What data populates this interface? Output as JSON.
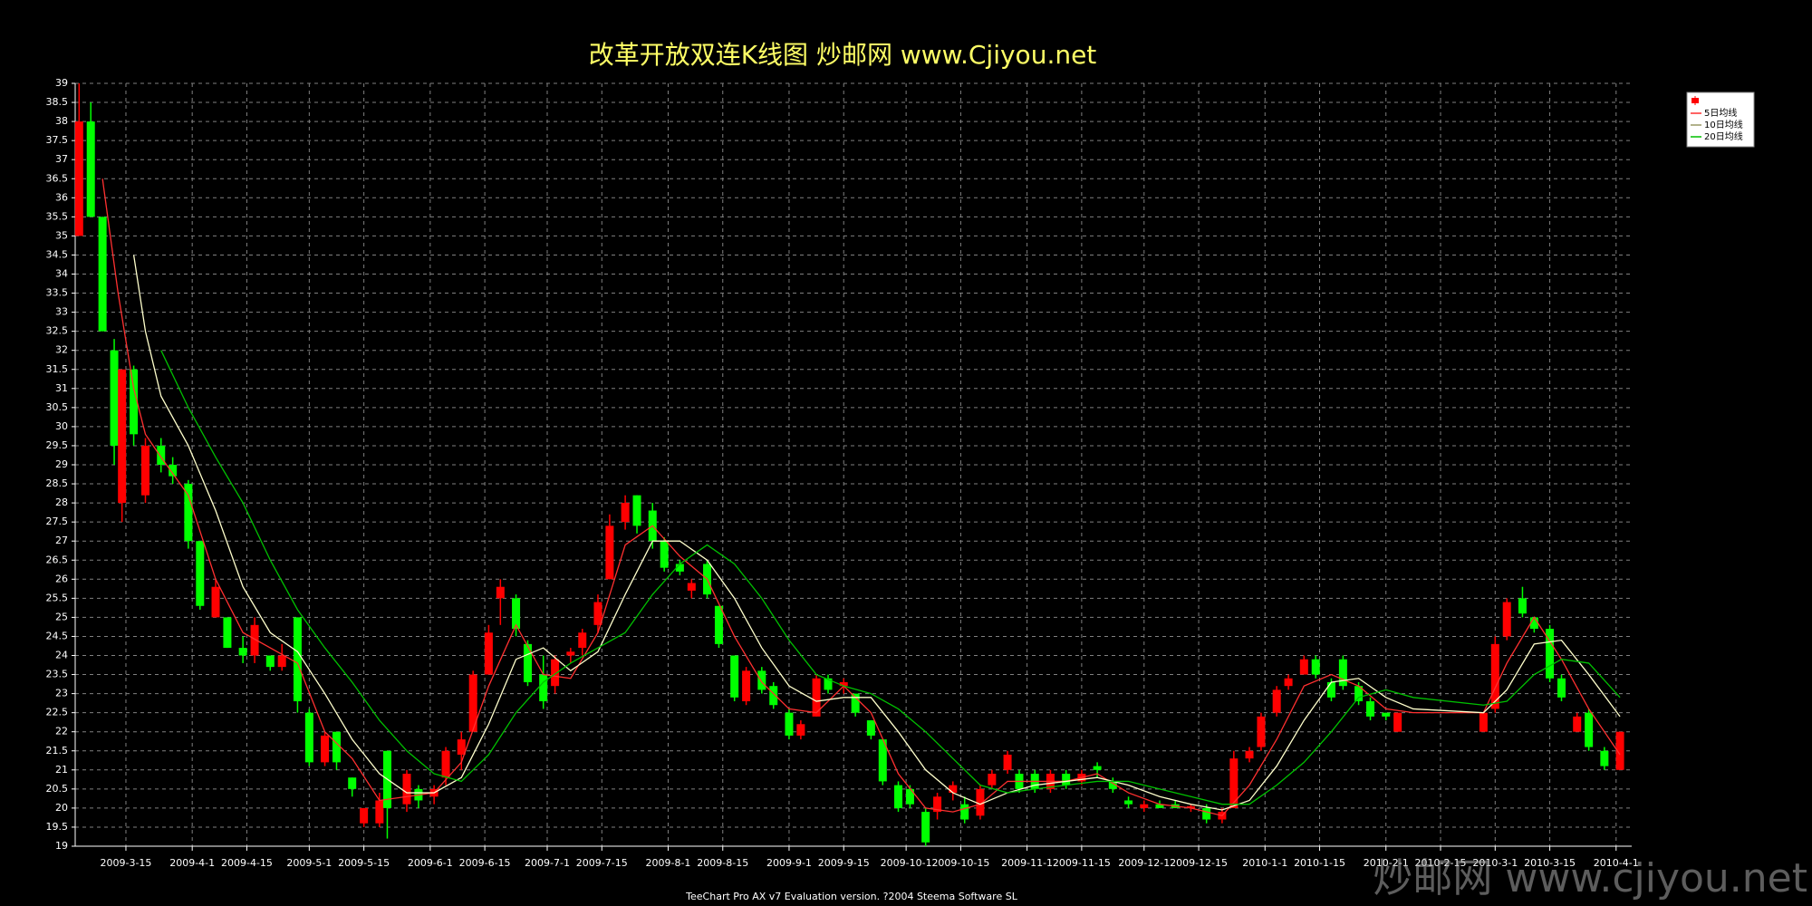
{
  "chart_data": {
    "type": "candlestick",
    "title": "改革开放双连K线图  炒邮网 www.Cjiyou.net",
    "footer": "TeeChart Pro AX v7 Evaluation version. ?2004 Steema Software SL",
    "watermark": "炒邮网 www.cjiyou.net",
    "up_color": "#ff0000",
    "down_color": "#00ff00",
    "grid": true,
    "legend": "top-right",
    "xlim": [
      "2009-3-2",
      "2010-4-5"
    ],
    "xticks": [
      "2009-3-15",
      "2009-4-1",
      "2009-4-15",
      "2009-5-1",
      "2009-5-15",
      "2009-6-1",
      "2009-6-15",
      "2009-7-1",
      "2009-7-15",
      "2009-8-1",
      "2009-8-15",
      "2009-9-1",
      "2009-9-15",
      "2009-10-1",
      "2009-10-15",
      "2009-11-1",
      "2009-11-15",
      "2009-12-1",
      "2009-12-15",
      "2010-1-1",
      "2010-1-15",
      "2010-2-1",
      "2010-2-15",
      "2010-3-1",
      "2010-3-15",
      "2010-4-1"
    ],
    "ylim": [
      19,
      39
    ],
    "yticks": [
      19,
      19.5,
      20,
      20.5,
      21,
      21.5,
      22,
      22.5,
      23,
      23.5,
      24,
      24.5,
      25,
      25.5,
      26,
      26.5,
      27,
      27.5,
      28,
      28.5,
      29,
      29.5,
      30,
      30.5,
      31,
      31.5,
      32,
      32.5,
      33,
      33.5,
      34,
      34.5,
      35,
      35.5,
      36,
      36.5,
      37,
      37.5,
      38,
      38.5,
      39
    ],
    "candles": [
      {
        "x": "2009-3-3",
        "open": 35,
        "high": 39,
        "low": 35,
        "close": 38
      },
      {
        "x": "2009-3-6",
        "open": 38,
        "high": 38.5,
        "low": 35.5,
        "close": 35.5
      },
      {
        "x": "2009-3-9",
        "open": 35.5,
        "high": 35.5,
        "low": 32.5,
        "close": 32.5
      },
      {
        "x": "2009-3-12",
        "open": 32,
        "high": 32.3,
        "low": 29,
        "close": 29.5
      },
      {
        "x": "2009-3-14",
        "open": 28,
        "high": 31.5,
        "low": 27.5,
        "close": 31.5
      },
      {
        "x": "2009-3-17",
        "open": 31.5,
        "high": 31.6,
        "low": 29.5,
        "close": 29.8
      },
      {
        "x": "2009-3-20",
        "open": 28.2,
        "high": 29.7,
        "low": 28,
        "close": 29.5
      },
      {
        "x": "2009-3-24",
        "open": 29.5,
        "high": 29.7,
        "low": 28.8,
        "close": 29
      },
      {
        "x": "2009-3-27",
        "open": 29,
        "high": 29.2,
        "low": 28.5,
        "close": 28.7
      },
      {
        "x": "2009-3-31",
        "open": 28.5,
        "high": 28.6,
        "low": 26.8,
        "close": 27
      },
      {
        "x": "2009-4-3",
        "open": 27,
        "high": 27,
        "low": 25.2,
        "close": 25.3
      },
      {
        "x": "2009-4-7",
        "open": 25,
        "high": 26,
        "low": 25,
        "close": 25.8
      },
      {
        "x": "2009-4-10",
        "open": 25,
        "high": 25,
        "low": 24.2,
        "close": 24.2
      },
      {
        "x": "2009-4-14",
        "open": 24.2,
        "high": 24.5,
        "low": 23.8,
        "close": 24
      },
      {
        "x": "2009-4-17",
        "open": 24,
        "high": 25,
        "low": 23.8,
        "close": 24.8
      },
      {
        "x": "2009-4-21",
        "open": 24,
        "high": 24,
        "low": 23.6,
        "close": 23.7
      },
      {
        "x": "2009-4-24",
        "open": 23.7,
        "high": 24.3,
        "low": 23.6,
        "close": 24
      },
      {
        "x": "2009-4-28",
        "open": 25,
        "high": 25,
        "low": 22.5,
        "close": 22.8
      },
      {
        "x": "2009-5-1",
        "open": 22.5,
        "high": 22.6,
        "low": 21.1,
        "close": 21.2
      },
      {
        "x": "2009-5-5",
        "open": 21.2,
        "high": 22,
        "low": 21.1,
        "close": 21.9
      },
      {
        "x": "2009-5-8",
        "open": 22,
        "high": 22,
        "low": 21,
        "close": 21.2
      },
      {
        "x": "2009-5-12",
        "open": 20.8,
        "high": 20.8,
        "low": 20.3,
        "close": 20.5
      },
      {
        "x": "2009-5-15",
        "open": 19.6,
        "high": 20,
        "low": 19.5,
        "close": 20
      },
      {
        "x": "2009-5-19",
        "open": 19.6,
        "high": 20.4,
        "low": 19.5,
        "close": 20.2
      },
      {
        "x": "2009-5-21",
        "open": 21.5,
        "high": 21.5,
        "low": 19.2,
        "close": 20
      },
      {
        "x": "2009-5-26",
        "open": 20.1,
        "high": 21,
        "low": 19.9,
        "close": 20.9
      },
      {
        "x": "2009-5-29",
        "open": 20.5,
        "high": 20.6,
        "low": 20,
        "close": 20.2
      },
      {
        "x": "2009-6-2",
        "open": 20.3,
        "high": 20.6,
        "low": 20.1,
        "close": 20.5
      },
      {
        "x": "2009-6-5",
        "open": 20.8,
        "high": 21.6,
        "low": 20.6,
        "close": 21.5
      },
      {
        "x": "2009-6-9",
        "open": 21.4,
        "high": 22,
        "low": 21,
        "close": 21.8
      },
      {
        "x": "2009-6-12",
        "open": 22,
        "high": 23.6,
        "low": 22,
        "close": 23.5
      },
      {
        "x": "2009-6-16",
        "open": 23.5,
        "high": 24.8,
        "low": 23.5,
        "close": 24.6
      },
      {
        "x": "2009-6-19",
        "open": 25.5,
        "high": 26,
        "low": 24.8,
        "close": 25.8
      },
      {
        "x": "2009-6-23",
        "open": 25.5,
        "high": 25.6,
        "low": 24.5,
        "close": 24.7
      },
      {
        "x": "2009-6-26",
        "open": 24.3,
        "high": 24.4,
        "low": 23.2,
        "close": 23.3
      },
      {
        "x": "2009-6-30",
        "open": 23.5,
        "high": 24,
        "low": 22.6,
        "close": 22.8
      },
      {
        "x": "2009-7-3",
        "open": 23.2,
        "high": 24,
        "low": 23,
        "close": 23.9
      },
      {
        "x": "2009-7-7",
        "open": 24,
        "high": 24.2,
        "low": 23.8,
        "close": 24.1
      },
      {
        "x": "2009-7-10",
        "open": 24.2,
        "high": 24.7,
        "low": 24,
        "close": 24.6
      },
      {
        "x": "2009-7-14",
        "open": 24.8,
        "high": 25.6,
        "low": 24.6,
        "close": 25.4
      },
      {
        "x": "2009-7-17",
        "open": 26,
        "high": 27.7,
        "low": 26,
        "close": 27.4
      },
      {
        "x": "2009-7-21",
        "open": 27.5,
        "high": 28.2,
        "low": 27.3,
        "close": 28
      },
      {
        "x": "2009-7-24",
        "open": 28.2,
        "high": 28.2,
        "low": 27.2,
        "close": 27.4
      },
      {
        "x": "2009-7-28",
        "open": 27.8,
        "high": 28,
        "low": 26.8,
        "close": 27
      },
      {
        "x": "2009-7-31",
        "open": 27,
        "high": 27.1,
        "low": 26.2,
        "close": 26.3
      },
      {
        "x": "2009-8-4",
        "open": 26.4,
        "high": 26.5,
        "low": 26.1,
        "close": 26.2
      },
      {
        "x": "2009-8-7",
        "open": 25.7,
        "high": 26,
        "low": 25.5,
        "close": 25.9
      },
      {
        "x": "2009-8-11",
        "open": 26.4,
        "high": 26.5,
        "low": 25.5,
        "close": 25.6
      },
      {
        "x": "2009-8-14",
        "open": 25.3,
        "high": 25.3,
        "low": 24.2,
        "close": 24.3
      },
      {
        "x": "2009-8-18",
        "open": 24,
        "high": 24,
        "low": 22.8,
        "close": 22.9
      },
      {
        "x": "2009-8-21",
        "open": 22.8,
        "high": 23.7,
        "low": 22.7,
        "close": 23.6
      },
      {
        "x": "2009-8-25",
        "open": 23.6,
        "high": 23.7,
        "low": 23,
        "close": 23.1
      },
      {
        "x": "2009-8-28",
        "open": 23.2,
        "high": 23.3,
        "low": 22.6,
        "close": 22.7
      },
      {
        "x": "2009-9-1",
        "open": 22.5,
        "high": 22.6,
        "low": 21.8,
        "close": 21.9
      },
      {
        "x": "2009-9-4",
        "open": 21.9,
        "high": 22.3,
        "low": 21.8,
        "close": 22.2
      },
      {
        "x": "2009-9-8",
        "open": 22.4,
        "high": 23.5,
        "low": 22.4,
        "close": 23.4
      },
      {
        "x": "2009-9-11",
        "open": 23.4,
        "high": 23.5,
        "low": 23,
        "close": 23.1
      },
      {
        "x": "2009-9-15",
        "open": 23.2,
        "high": 23.4,
        "low": 23,
        "close": 23.3
      },
      {
        "x": "2009-9-18",
        "open": 23,
        "high": 23,
        "low": 22.4,
        "close": 22.5
      },
      {
        "x": "2009-9-22",
        "open": 22.3,
        "high": 22.3,
        "low": 21.8,
        "close": 21.9
      },
      {
        "x": "2009-9-25",
        "open": 21.8,
        "high": 21.8,
        "low": 20.6,
        "close": 20.7
      },
      {
        "x": "2009-9-29",
        "open": 20.6,
        "high": 20.7,
        "low": 19.9,
        "close": 20
      },
      {
        "x": "2009-10-2",
        "open": 20.5,
        "high": 20.6,
        "low": 20,
        "close": 20.1
      },
      {
        "x": "2009-10-6",
        "open": 19.9,
        "high": 20,
        "low": 19,
        "close": 19.1
      },
      {
        "x": "2009-10-9",
        "open": 19.9,
        "high": 20.4,
        "low": 19.7,
        "close": 20.3
      },
      {
        "x": "2009-10-13",
        "open": 20.4,
        "high": 20.7,
        "low": 20.2,
        "close": 20.6
      },
      {
        "x": "2009-10-16",
        "open": 20.1,
        "high": 20.3,
        "low": 19.6,
        "close": 19.7
      },
      {
        "x": "2009-10-20",
        "open": 19.8,
        "high": 20.6,
        "low": 19.7,
        "close": 20.5
      },
      {
        "x": "2009-10-23",
        "open": 20.6,
        "high": 21,
        "low": 20.5,
        "close": 20.9
      },
      {
        "x": "2009-10-27",
        "open": 21,
        "high": 21.5,
        "low": 20.9,
        "close": 21.4
      },
      {
        "x": "2009-10-30",
        "open": 20.9,
        "high": 21,
        "low": 20.4,
        "close": 20.5
      },
      {
        "x": "2009-11-3",
        "open": 20.9,
        "high": 21,
        "low": 20.4,
        "close": 20.5
      },
      {
        "x": "2009-11-7",
        "open": 20.5,
        "high": 21,
        "low": 20.4,
        "close": 20.9
      },
      {
        "x": "2009-11-11",
        "open": 20.9,
        "high": 21,
        "low": 20.5,
        "close": 20.6
      },
      {
        "x": "2009-11-15",
        "open": 20.7,
        "high": 21,
        "low": 20.6,
        "close": 20.9
      },
      {
        "x": "2009-11-19",
        "open": 21.1,
        "high": 21.2,
        "low": 20.8,
        "close": 21
      },
      {
        "x": "2009-11-23",
        "open": 20.7,
        "high": 20.8,
        "low": 20.4,
        "close": 20.5
      },
      {
        "x": "2009-11-27",
        "open": 20.2,
        "high": 20.3,
        "low": 20,
        "close": 20.1
      },
      {
        "x": "2009-12-1",
        "open": 20,
        "high": 20.2,
        "low": 19.9,
        "close": 20.1
      },
      {
        "x": "2009-12-5",
        "open": 20.1,
        "high": 20.2,
        "low": 20,
        "close": 20
      },
      {
        "x": "2009-12-9",
        "open": 20.1,
        "high": 20.2,
        "low": 20,
        "close": 20
      },
      {
        "x": "2009-12-13",
        "open": 20,
        "high": 20.1,
        "low": 19.9,
        "close": 20.05
      },
      {
        "x": "2009-12-17",
        "open": 20,
        "high": 20.1,
        "low": 19.6,
        "close": 19.7
      },
      {
        "x": "2009-12-21",
        "open": 19.7,
        "high": 20,
        "low": 19.6,
        "close": 19.9
      },
      {
        "x": "2009-12-24",
        "open": 20,
        "high": 21.5,
        "low": 20,
        "close": 21.3
      },
      {
        "x": "2009-12-28",
        "open": 21.3,
        "high": 21.6,
        "low": 21.2,
        "close": 21.5
      },
      {
        "x": "2009-12-31",
        "open": 21.6,
        "high": 22.5,
        "low": 21.5,
        "close": 22.4
      },
      {
        "x": "2010-1-4",
        "open": 22.5,
        "high": 23.2,
        "low": 22.4,
        "close": 23.1
      },
      {
        "x": "2010-1-7",
        "open": 23.2,
        "high": 23.5,
        "low": 23.1,
        "close": 23.4
      },
      {
        "x": "2010-1-11",
        "open": 23.5,
        "high": 24,
        "low": 23.5,
        "close": 23.9
      },
      {
        "x": "2010-1-14",
        "open": 23.9,
        "high": 24,
        "low": 23.4,
        "close": 23.5
      },
      {
        "x": "2010-1-18",
        "open": 23.3,
        "high": 23.4,
        "low": 22.8,
        "close": 22.9
      },
      {
        "x": "2010-1-21",
        "open": 23.9,
        "high": 24,
        "low": 23.1,
        "close": 23.2
      },
      {
        "x": "2010-1-25",
        "open": 23.2,
        "high": 23.3,
        "low": 22.7,
        "close": 22.8
      },
      {
        "x": "2010-1-28",
        "open": 22.8,
        "high": 22.9,
        "low": 22.3,
        "close": 22.4
      },
      {
        "x": "2010-2-1",
        "open": 22.5,
        "high": 22.5,
        "low": 22.3,
        "close": 22.4
      },
      {
        "x": "2010-2-4",
        "open": 22,
        "high": 22.5,
        "low": 22,
        "close": 22.5
      },
      {
        "x": "2010-2-26",
        "open": 22,
        "high": 22.5,
        "low": 22,
        "close": 22.5
      },
      {
        "x": "2010-3-1",
        "open": 22.6,
        "high": 24.5,
        "low": 22.5,
        "close": 24.3
      },
      {
        "x": "2010-3-4",
        "open": 24.5,
        "high": 25.5,
        "low": 24.4,
        "close": 25.4
      },
      {
        "x": "2010-3-8",
        "open": 25.5,
        "high": 25.8,
        "low": 25,
        "close": 25.1
      },
      {
        "x": "2010-3-11",
        "open": 25,
        "high": 25,
        "low": 24.6,
        "close": 24.7
      },
      {
        "x": "2010-3-15",
        "open": 24.7,
        "high": 24.8,
        "low": 23.3,
        "close": 23.4
      },
      {
        "x": "2010-3-18",
        "open": 23.4,
        "high": 23.5,
        "low": 22.8,
        "close": 22.9
      },
      {
        "x": "2010-3-22",
        "open": 22,
        "high": 22.5,
        "low": 22,
        "close": 22.4
      },
      {
        "x": "2010-3-25",
        "open": 22.5,
        "high": 22.6,
        "low": 21.5,
        "close": 21.6
      },
      {
        "x": "2010-3-29",
        "open": 21.5,
        "high": 21.6,
        "low": 21,
        "close": 21.1
      },
      {
        "x": "2010-4-2",
        "open": 21,
        "high": 22,
        "low": 21,
        "close": 22
      }
    ],
    "ma_x": [
      "2009-3-9",
      "2009-3-13",
      "2009-3-17",
      "2009-3-20",
      "2009-3-24",
      "2009-3-31",
      "2009-4-7",
      "2009-4-14",
      "2009-4-21",
      "2009-4-28",
      "2009-5-5",
      "2009-5-12",
      "2009-5-19",
      "2009-5-26",
      "2009-6-2",
      "2009-6-9",
      "2009-6-16",
      "2009-6-23",
      "2009-6-30",
      "2009-7-7",
      "2009-7-14",
      "2009-7-21",
      "2009-7-28",
      "2009-8-4",
      "2009-8-11",
      "2009-8-18",
      "2009-8-25",
      "2009-9-1",
      "2009-9-8",
      "2009-9-15",
      "2009-9-22",
      "2009-9-29",
      "2009-10-6",
      "2009-10-13",
      "2009-10-20",
      "2009-10-27",
      "2009-11-3",
      "2009-11-11",
      "2009-11-19",
      "2009-11-27",
      "2009-12-5",
      "2009-12-13",
      "2009-12-21",
      "2009-12-28",
      "2010-1-4",
      "2010-1-11",
      "2010-1-18",
      "2010-1-25",
      "2010-2-1",
      "2010-2-8",
      "2010-2-26",
      "2010-3-4",
      "2010-3-11",
      "2010-3-18",
      "2010-3-25",
      "2010-4-2"
    ],
    "series": [
      {
        "name": "5日均线",
        "color": "#ff3030",
        "values": [
          36.5,
          33.5,
          31,
          29.8,
          29.2,
          28.2,
          26,
          24.6,
          24.2,
          23.8,
          22,
          21.3,
          20.2,
          20.3,
          20.4,
          21.2,
          23.2,
          24.8,
          23.5,
          23.4,
          24.6,
          26.9,
          27.4,
          26.6,
          26,
          24.5,
          23.3,
          22.6,
          22.5,
          23.2,
          22.5,
          20.9,
          20,
          19.9,
          20.1,
          20.7,
          20.7,
          20.7,
          20.9,
          20.4,
          20.1,
          20,
          19.8,
          20.6,
          21.8,
          23.2,
          23.5,
          23.2,
          22.6,
          22.5,
          22.5,
          23.8,
          25,
          23.9,
          22.6,
          21.4
        ]
      },
      {
        "name": "10日均线",
        "color": "#ffffcc",
        "values": [
          null,
          null,
          34.5,
          32.5,
          30.8,
          29.5,
          27.8,
          25.8,
          24.6,
          24.1,
          23,
          21.8,
          20.9,
          20.4,
          20.4,
          20.8,
          22.2,
          23.9,
          24.2,
          23.6,
          24.1,
          25.6,
          27,
          27,
          26.5,
          25.5,
          24.2,
          23.2,
          22.8,
          22.9,
          22.9,
          22,
          21,
          20.4,
          20.1,
          20.4,
          20.6,
          20.7,
          20.8,
          20.6,
          20.3,
          20.1,
          19.95,
          20.2,
          21.1,
          22.3,
          23.3,
          23.4,
          22.9,
          22.6,
          22.5,
          23.1,
          24.3,
          24.4,
          23.5,
          22.4
        ]
      },
      {
        "name": "20日均线",
        "color": "#00c000",
        "values": [
          null,
          null,
          null,
          null,
          32,
          30.5,
          29.2,
          28,
          26.5,
          25.2,
          24.2,
          23.3,
          22.3,
          21.5,
          20.9,
          20.7,
          21.4,
          22.5,
          23.3,
          23.8,
          24.2,
          24.6,
          25.6,
          26.4,
          26.9,
          26.4,
          25.5,
          24.4,
          23.5,
          23.2,
          23,
          22.6,
          22,
          21.3,
          20.6,
          20.4,
          20.5,
          20.6,
          20.7,
          20.7,
          20.5,
          20.3,
          20.1,
          20.1,
          20.6,
          21.2,
          22,
          22.9,
          23.1,
          22.9,
          22.7,
          22.8,
          23.5,
          23.9,
          23.8,
          22.9
        ]
      }
    ]
  }
}
